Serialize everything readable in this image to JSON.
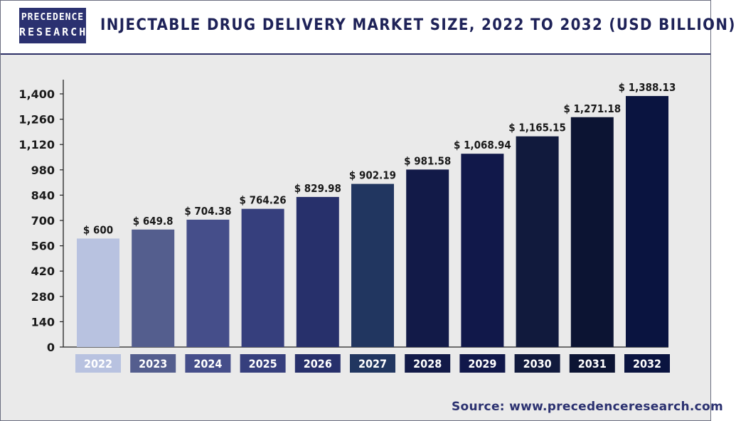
{
  "header": {
    "logo_line1": "PRECEDENCE",
    "logo_line2": "RESEARCH",
    "title": "INJECTABLE DRUG DELIVERY MARKET SIZE, 2022 TO 2032 (USD BILLION)"
  },
  "footer": {
    "source": "Source: www.precedenceresearch.com"
  },
  "chart_data": {
    "type": "bar",
    "title": "INJECTABLE DRUG DELIVERY MARKET SIZE, 2022 TO 2032 (USD BILLION)",
    "categories": [
      "2022",
      "2023",
      "2024",
      "2025",
      "2026",
      "2027",
      "2028",
      "2029",
      "2030",
      "2031",
      "2032"
    ],
    "values": [
      600,
      649.8,
      704.38,
      764.26,
      829.98,
      902.19,
      981.58,
      1068.94,
      1165.15,
      1271.18,
      1388.13
    ],
    "value_labels": [
      "$ 600",
      "$ 649.8",
      "$ 704.38",
      "$ 764.26",
      "$ 829.98",
      "$ 902.19",
      "$ 981.58",
      "$ 1,068.94",
      "$ 1,165.15",
      "$ 1,271.18",
      "$ 1,388.13"
    ],
    "colors": [
      "#b8c2e0",
      "#545e8e",
      "#454e8a",
      "#363f7d",
      "#27306b",
      "#213660",
      "#121a48",
      "#11184a",
      "#111a3d",
      "#0c1433",
      "#0a1440"
    ],
    "yticks": [
      0,
      140,
      280,
      420,
      560,
      700,
      840,
      980,
      1120,
      1260,
      1400
    ],
    "ytick_labels": [
      "0",
      "140",
      "280",
      "420",
      "560",
      "700",
      "840",
      "980",
      "1,120",
      "1,260",
      "1,400"
    ],
    "ylim": [
      0,
      1400
    ],
    "xlabel": "",
    "ylabel": "",
    "grid": false,
    "legend": "none"
  }
}
